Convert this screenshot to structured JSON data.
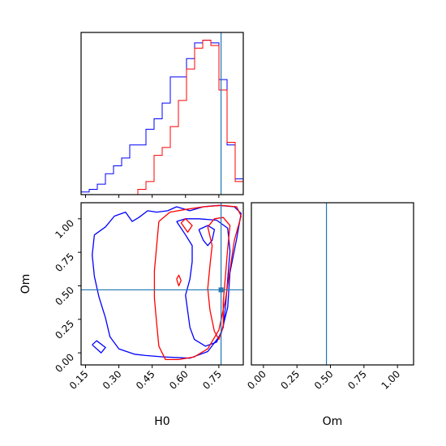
{
  "chart_data": {
    "type": "corner",
    "parameters": [
      "H0",
      "Om"
    ],
    "truth": {
      "H0": 0.76,
      "Om": 0.47
    },
    "truth_color": "#1f77b4",
    "series_colors": [
      "#0000ff",
      "#ff0000"
    ],
    "h0_axis": {
      "label": "H0",
      "lim": [
        0.13,
        0.86
      ],
      "ticks": [
        0.15,
        0.3,
        0.45,
        0.6,
        0.75
      ],
      "tick_labels": [
        "0.15",
        "0.30",
        "0.45",
        "0.60",
        "0.75"
      ]
    },
    "om_axis": {
      "label": "Om",
      "lim": [
        -0.09,
        1.12
      ],
      "ticks": [
        0.0,
        0.25,
        0.5,
        0.75,
        1.0
      ],
      "tick_labels": [
        "0.00",
        "0.25",
        "0.50",
        "0.75",
        "1.00"
      ]
    },
    "hist_h0": {
      "bins": [
        0.13,
        0.1665,
        0.203,
        0.2395,
        0.276,
        0.3125,
        0.349,
        0.3855,
        0.422,
        0.4585,
        0.495,
        0.5315,
        0.568,
        0.6045,
        0.641,
        0.6775,
        0.714,
        0.7505,
        0.787,
        0.8235,
        0.86
      ],
      "series": [
        {
          "color": "#0000ff",
          "counts": [
            0.01,
            0.02,
            0.04,
            0.08,
            0.11,
            0.14,
            0.19,
            0.19,
            0.25,
            0.29,
            0.35,
            0.45,
            0.45,
            0.52,
            0.58,
            0.59,
            0.58,
            0.44,
            0.19,
            0.06
          ]
        },
        {
          "color": "#ff0000",
          "counts": [
            0.0,
            0.0,
            0.0,
            0.0,
            0.0,
            0.0,
            0.0,
            0.02,
            0.05,
            0.15,
            0.18,
            0.26,
            0.36,
            0.48,
            0.56,
            0.59,
            0.57,
            0.4,
            0.2,
            0.05
          ]
        }
      ]
    },
    "hist_om": {
      "bins": [
        -0.09,
        -0.03,
        0.03,
        0.09,
        0.15,
        0.21,
        0.27,
        0.33,
        0.39,
        0.45,
        0.51,
        0.57,
        0.63,
        0.69,
        0.75,
        0.81,
        0.87,
        0.93,
        0.99,
        1.05
      ],
      "series": [
        {
          "color": "#0000ff",
          "counts": [
            0.0,
            0.0,
            0.0,
            0.0,
            0.0,
            0.0,
            0.0,
            0.0,
            0.0,
            0.0,
            0.0,
            0.0,
            0.0,
            0.0,
            0.0,
            0.0,
            0.0,
            0.0,
            0.0
          ]
        },
        {
          "color": "#ff0000",
          "counts": [
            0.0,
            0.0,
            0.0,
            0.0,
            0.0,
            0.0,
            0.0,
            0.0,
            0.0,
            0.0,
            0.0,
            0.0,
            0.0,
            0.0,
            0.0,
            0.0,
            0.0,
            0.0,
            0.0
          ]
        }
      ]
    },
    "contours": [
      {
        "color": "#0000ff",
        "points": [
          [
            0.19,
            0.88
          ],
          [
            0.24,
            0.94
          ],
          [
            0.28,
            1.02
          ],
          [
            0.33,
            1.05
          ],
          [
            0.36,
            0.98
          ],
          [
            0.39,
            1.01
          ],
          [
            0.43,
            1.06
          ],
          [
            0.47,
            1.05
          ],
          [
            0.52,
            1.06
          ],
          [
            0.56,
            1.09
          ],
          [
            0.62,
            1.06
          ],
          [
            0.68,
            1.09
          ],
          [
            0.75,
            1.1
          ],
          [
            0.82,
            1.09
          ],
          [
            0.85,
            1.04
          ],
          [
            0.83,
            0.85
          ],
          [
            0.8,
            0.6
          ],
          [
            0.79,
            0.34
          ],
          [
            0.76,
            0.14
          ],
          [
            0.7,
            0.01
          ],
          [
            0.62,
            -0.04
          ],
          [
            0.5,
            -0.03
          ],
          [
            0.42,
            -0.02
          ],
          [
            0.37,
            -0.01
          ],
          [
            0.3,
            0.03
          ],
          [
            0.26,
            0.12
          ],
          [
            0.24,
            0.26
          ],
          [
            0.21,
            0.42
          ],
          [
            0.19,
            0.57
          ],
          [
            0.18,
            0.73
          ],
          [
            0.19,
            0.88
          ]
        ]
      },
      {
        "color": "#0000ff",
        "points": [
          [
            0.56,
            0.98
          ],
          [
            0.6,
            0.88
          ],
          [
            0.63,
            0.8
          ],
          [
            0.63,
            0.68
          ],
          [
            0.62,
            0.55
          ],
          [
            0.6,
            0.43
          ],
          [
            0.61,
            0.31
          ],
          [
            0.62,
            0.19
          ],
          [
            0.64,
            0.1
          ],
          [
            0.69,
            0.05
          ],
          [
            0.74,
            0.08
          ],
          [
            0.77,
            0.19
          ],
          [
            0.78,
            0.35
          ],
          [
            0.79,
            0.55
          ],
          [
            0.8,
            0.76
          ],
          [
            0.79,
            0.93
          ],
          [
            0.74,
            0.99
          ],
          [
            0.66,
            1.0
          ],
          [
            0.6,
            1.0
          ],
          [
            0.56,
            0.98
          ]
        ]
      },
      {
        "color": "#0000ff",
        "points": [
          [
            0.66,
            0.92
          ],
          [
            0.68,
            0.84
          ],
          [
            0.7,
            0.8
          ],
          [
            0.72,
            0.84
          ],
          [
            0.73,
            0.92
          ],
          [
            0.7,
            0.95
          ],
          [
            0.66,
            0.92
          ]
        ]
      },
      {
        "color": "#0000ff",
        "points": [
          [
            0.18,
            0.06
          ],
          [
            0.22,
            0.0
          ],
          [
            0.24,
            0.04
          ],
          [
            0.2,
            0.09
          ],
          [
            0.18,
            0.06
          ]
        ]
      },
      {
        "color": "#ff0000",
        "points": [
          [
            0.48,
            0.98
          ],
          [
            0.53,
            1.05
          ],
          [
            0.6,
            1.07
          ],
          [
            0.68,
            1.09
          ],
          [
            0.76,
            1.1
          ],
          [
            0.83,
            1.09
          ],
          [
            0.85,
            1.02
          ],
          [
            0.82,
            0.84
          ],
          [
            0.8,
            0.62
          ],
          [
            0.78,
            0.4
          ],
          [
            0.75,
            0.17
          ],
          [
            0.7,
            0.03
          ],
          [
            0.64,
            -0.03
          ],
          [
            0.57,
            -0.05
          ],
          [
            0.51,
            -0.05
          ],
          [
            0.48,
            0.05
          ],
          [
            0.47,
            0.22
          ],
          [
            0.46,
            0.41
          ],
          [
            0.46,
            0.61
          ],
          [
            0.47,
            0.8
          ],
          [
            0.48,
            0.98
          ]
        ]
      },
      {
        "color": "#ff0000",
        "points": [
          [
            0.7,
            0.94
          ],
          [
            0.72,
            0.8
          ],
          [
            0.71,
            0.65
          ],
          [
            0.7,
            0.48
          ],
          [
            0.71,
            0.32
          ],
          [
            0.73,
            0.16
          ],
          [
            0.75,
            0.1
          ],
          [
            0.77,
            0.2
          ],
          [
            0.77,
            0.38
          ],
          [
            0.78,
            0.58
          ],
          [
            0.79,
            0.78
          ],
          [
            0.8,
            0.95
          ],
          [
            0.77,
            1.01
          ],
          [
            0.73,
            1.0
          ],
          [
            0.7,
            0.94
          ]
        ]
      },
      {
        "color": "#ff0000",
        "points": [
          [
            0.58,
            0.97
          ],
          [
            0.61,
            0.9
          ],
          [
            0.63,
            0.95
          ],
          [
            0.6,
            1.0
          ],
          [
            0.58,
            0.97
          ]
        ]
      },
      {
        "color": "#ff0000",
        "points": [
          [
            0.56,
            0.55
          ],
          [
            0.57,
            0.5
          ],
          [
            0.58,
            0.54
          ],
          [
            0.57,
            0.58
          ],
          [
            0.56,
            0.55
          ]
        ]
      }
    ]
  }
}
